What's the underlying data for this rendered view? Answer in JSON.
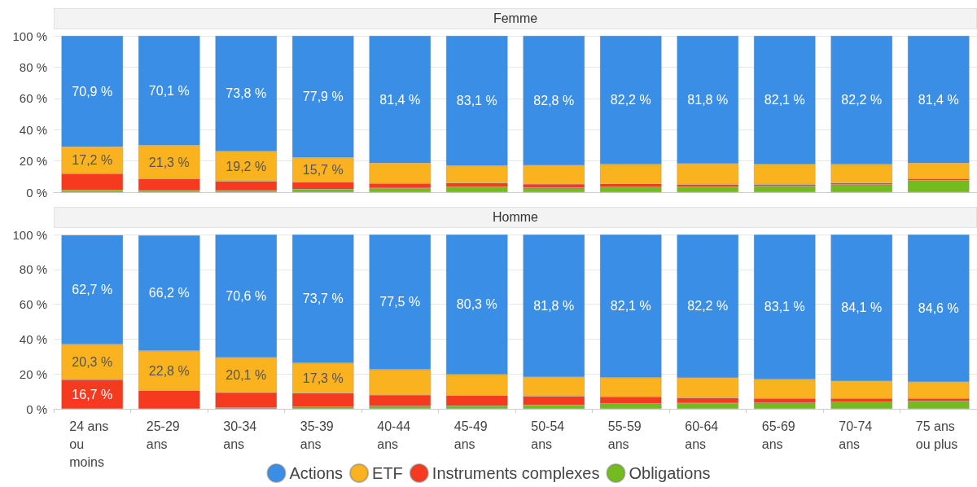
{
  "chart_data": [
    {
      "type": "bar",
      "title": "Femme",
      "stacked": true,
      "legend": false,
      "grid": "y",
      "tick_labels": "y",
      "categories": [
        "24 ans ou moins",
        "25-29 ans",
        "30-34 ans",
        "35-39 ans",
        "40-44 ans",
        "45-49 ans",
        "50-54 ans",
        "55-59 ans",
        "60-64 ans",
        "65-69 ans",
        "70-74 ans",
        "75 ans ou plus"
      ],
      "ylim": [
        0,
        100
      ],
      "yticks": [
        {
          "value": 0,
          "label": "0 %"
        },
        {
          "value": 20,
          "label": "20 %"
        },
        {
          "value": 40,
          "label": "40 %"
        },
        {
          "value": 60,
          "label": "60 %"
        },
        {
          "value": 80,
          "label": "80 %"
        },
        {
          "value": 100,
          "label": "100 %"
        }
      ],
      "series": [
        {
          "color": "#74bb1f",
          "values": [
            1.4,
            1.1,
            1.0,
            1.9,
            2.6,
            3.4,
            2.7,
            3.3,
            3.5,
            3.9,
            4.8,
            7.6
          ]
        },
        {
          "color": "#f63a1f",
          "values": [
            10.5,
            7.5,
            6.0,
            4.5,
            3.0,
            2.5,
            2.5,
            2.0,
            1.5,
            1.0,
            1.0,
            1.0
          ]
        },
        {
          "color": "#fbb21f",
          "values": [
            17.2,
            21.3,
            19.2,
            15.7,
            13.0,
            11.0,
            12.0,
            12.5,
            13.2,
            13.0,
            12.0,
            10.0
          ],
          "value_labels": [
            "17,2 %",
            "21,3 %",
            "19,2 %",
            "15,7 %",
            null,
            null,
            null,
            null,
            null,
            null,
            null,
            null
          ]
        },
        {
          "color": "#3a8ee6",
          "values": [
            70.9,
            70.1,
            73.8,
            77.9,
            81.4,
            83.1,
            82.8,
            82.2,
            81.8,
            82.1,
            82.2,
            81.4
          ],
          "value_labels": [
            "70,9 %",
            "70,1 %",
            "73,8 %",
            "77,9 %",
            "81,4 %",
            "83,1 %",
            "82,8 %",
            "82,2 %",
            "81,8 %",
            "82,1 %",
            "82,2 %",
            "81,4 %"
          ]
        }
      ]
    },
    {
      "type": "bar",
      "title": "Homme",
      "stacked": true,
      "legend": "bottom",
      "grid": "y",
      "categories": [
        "24 ans ou moins",
        "25-29 ans",
        "30-34 ans",
        "35-39 ans",
        "40-44 ans",
        "45-49 ans",
        "50-54 ans",
        "55-59 ans",
        "60-64 ans",
        "65-69 ans",
        "70-74 ans",
        "75 ans ou plus"
      ],
      "ylim": [
        0,
        100
      ],
      "yticks": [
        {
          "value": 0,
          "label": "0 %"
        },
        {
          "value": 20,
          "label": "20 %"
        },
        {
          "value": 40,
          "label": "40 %"
        },
        {
          "value": 60,
          "label": "60 %"
        },
        {
          "value": 80,
          "label": "80 %"
        },
        {
          "value": 100,
          "label": "100 %"
        }
      ],
      "series": [
        {
          "name": "Obligations",
          "color": "#74bb1f",
          "values": [
            null,
            null,
            0.6,
            1.0,
            1.5,
            1.7,
            2.2,
            2.9,
            3.3,
            3.4,
            3.9,
            4.4
          ]
        },
        {
          "name": "Instruments complexes",
          "color": "#f63a1f",
          "values": [
            16.7,
            10.5,
            8.7,
            8.0,
            6.5,
            6.0,
            5.0,
            4.0,
            3.0,
            2.5,
            2.0,
            1.5
          ],
          "value_labels": [
            "16,7 %",
            null,
            null,
            null,
            null,
            null,
            null,
            null,
            null,
            null,
            null,
            null
          ]
        },
        {
          "name": "ETF",
          "color": "#fbb21f",
          "values": [
            20.3,
            22.8,
            20.1,
            17.3,
            14.5,
            12.0,
            11.0,
            11.0,
            11.5,
            11.0,
            10.0,
            9.5
          ],
          "value_labels": [
            "20,3 %",
            "22,8 %",
            "20,1 %",
            "17,3 %",
            null,
            null,
            null,
            null,
            null,
            null,
            null,
            null
          ]
        },
        {
          "name": "Actions",
          "color": "#3a8ee6",
          "values": [
            62.7,
            66.2,
            70.6,
            73.7,
            77.5,
            80.3,
            81.8,
            82.1,
            82.2,
            83.1,
            84.1,
            84.6
          ],
          "value_labels": [
            "62,7 %",
            "66,2 %",
            "70,6 %",
            "73,7 %",
            "77,5 %",
            "80,3 %",
            "81,8 %",
            "82,1 %",
            "82,2 %",
            "83,1 %",
            "84,1 %",
            "84,6 %"
          ]
        }
      ]
    }
  ]
}
